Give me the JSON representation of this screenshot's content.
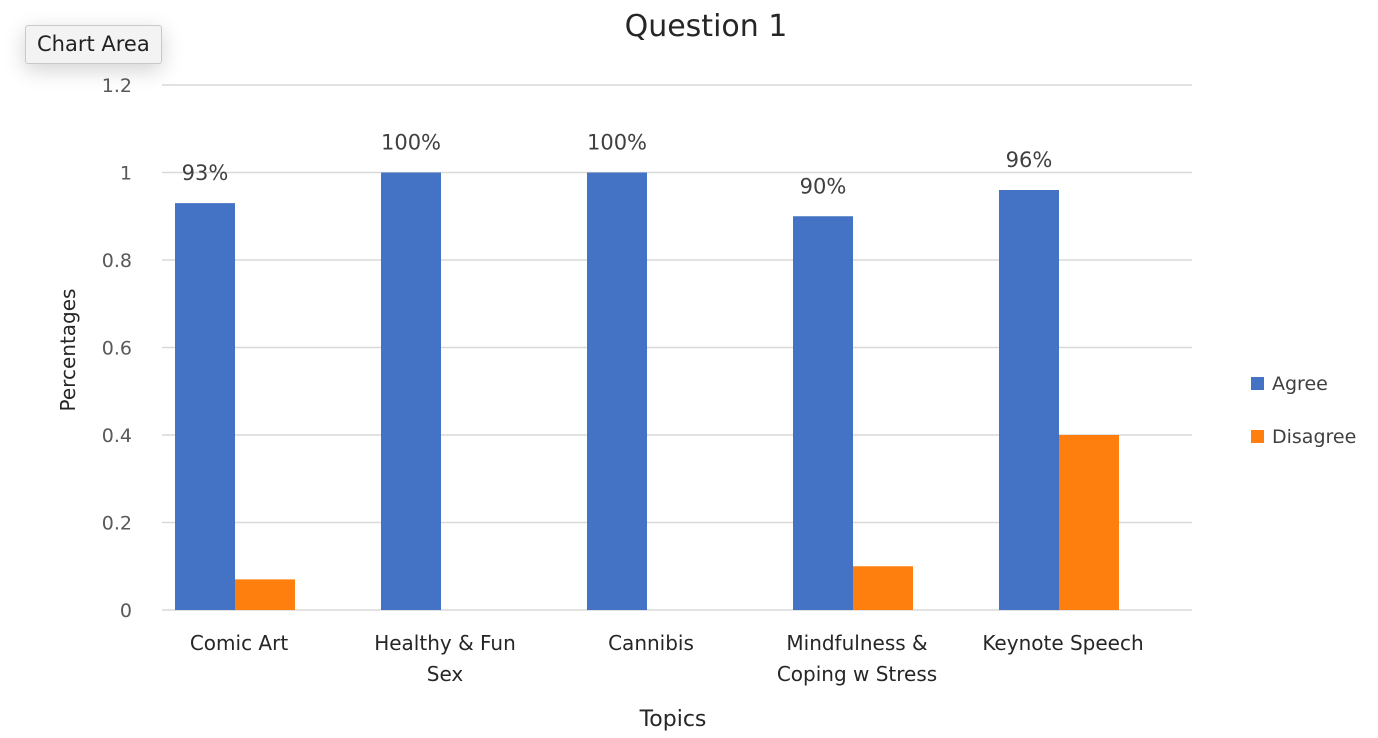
{
  "tooltip": {
    "label": "Chart Area"
  },
  "chart_data": {
    "type": "bar",
    "title": "Question 1",
    "xlabel": "Topics",
    "ylabel": "Percentages",
    "ylim": [
      0,
      1.2
    ],
    "yticks": [
      "0",
      "0.2",
      "0.4",
      "0.6",
      "0.8",
      "1",
      "1.2"
    ],
    "categories": [
      [
        "Comic Art"
      ],
      [
        "Healthy & Fun",
        "Sex"
      ],
      [
        "Cannibis"
      ],
      [
        "Mindfulness &",
        "Coping w Stress"
      ],
      [
        "Keynote Speech"
      ]
    ],
    "series": [
      {
        "name": "Agree",
        "values": [
          0.93,
          1.0,
          1.0,
          0.9,
          0.96
        ],
        "labels": [
          "93%",
          "100%",
          "100%",
          "90%",
          "96%"
        ],
        "color": "#4472C4"
      },
      {
        "name": "Disagree",
        "values": [
          0.07,
          0,
          0,
          0.1,
          0.4
        ],
        "labels": [
          null,
          null,
          null,
          null,
          null
        ],
        "color": "#FF7F0E"
      }
    ],
    "grid": true,
    "legend": "right"
  }
}
